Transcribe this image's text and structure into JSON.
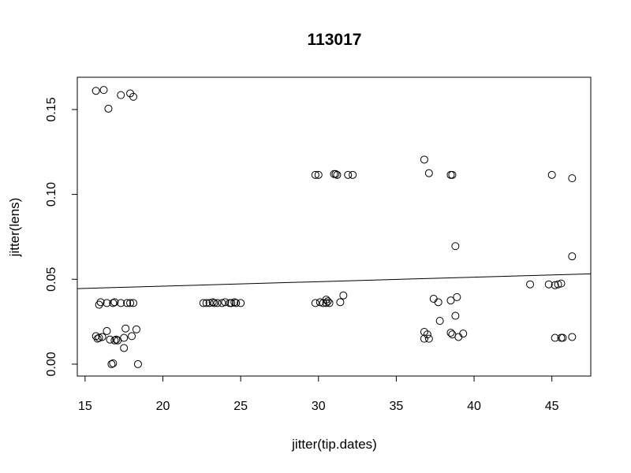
{
  "chart_data": {
    "type": "scatter",
    "title": "113017",
    "xlabel": "jitter(tip.dates)",
    "ylabel": "jitter(lens)",
    "xlim": [
      14.5,
      47.5
    ],
    "ylim": [
      -0.007,
      0.169
    ],
    "xticks": [
      15,
      20,
      25,
      30,
      35,
      40,
      45
    ],
    "yticks": [
      0.0,
      0.05,
      0.1,
      0.15
    ],
    "ytick_labels": [
      "0.00",
      "0.05",
      "0.10",
      "0.15"
    ],
    "grid": false,
    "marker": "open-circle",
    "series": [
      {
        "points": [
          [
            15.7,
            0.161
          ],
          [
            16.2,
            0.1615
          ],
          [
            16.5,
            0.1505
          ],
          [
            17.3,
            0.1585
          ],
          [
            17.9,
            0.1595
          ],
          [
            18.1,
            0.1575
          ],
          [
            15.9,
            0.035
          ],
          [
            16.0,
            0.0365
          ],
          [
            16.4,
            0.036
          ],
          [
            16.8,
            0.036
          ],
          [
            16.9,
            0.0365
          ],
          [
            17.3,
            0.036
          ],
          [
            17.7,
            0.036
          ],
          [
            17.9,
            0.036
          ],
          [
            18.1,
            0.036
          ],
          [
            15.7,
            0.0165
          ],
          [
            15.8,
            0.015
          ],
          [
            15.9,
            0.0155
          ],
          [
            16.1,
            0.016
          ],
          [
            16.4,
            0.0195
          ],
          [
            16.6,
            0.0145
          ],
          [
            16.9,
            0.014
          ],
          [
            17.0,
            0.0145
          ],
          [
            17.1,
            0.014
          ],
          [
            17.5,
            0.0155
          ],
          [
            17.6,
            0.021
          ],
          [
            18.0,
            0.0165
          ],
          [
            18.3,
            0.0205
          ],
          [
            17.5,
            0.0095
          ],
          [
            16.7,
            0.0
          ],
          [
            16.8,
            0.0005
          ],
          [
            18.4,
            0.0
          ],
          [
            22.6,
            0.036
          ],
          [
            22.8,
            0.036
          ],
          [
            23.0,
            0.036
          ],
          [
            23.2,
            0.0365
          ],
          [
            23.3,
            0.036
          ],
          [
            23.5,
            0.036
          ],
          [
            23.8,
            0.036
          ],
          [
            24.0,
            0.0365
          ],
          [
            24.3,
            0.036
          ],
          [
            24.4,
            0.036
          ],
          [
            24.6,
            0.0365
          ],
          [
            24.7,
            0.036
          ],
          [
            25.0,
            0.036
          ],
          [
            29.8,
            0.1115
          ],
          [
            30.0,
            0.1115
          ],
          [
            31.0,
            0.112
          ],
          [
            31.1,
            0.112
          ],
          [
            31.2,
            0.1115
          ],
          [
            31.9,
            0.1115
          ],
          [
            32.2,
            0.1115
          ],
          [
            29.8,
            0.036
          ],
          [
            30.1,
            0.0365
          ],
          [
            30.3,
            0.036
          ],
          [
            30.5,
            0.036
          ],
          [
            30.6,
            0.037
          ],
          [
            30.5,
            0.038
          ],
          [
            30.7,
            0.036
          ],
          [
            31.4,
            0.0365
          ],
          [
            31.6,
            0.0405
          ],
          [
            36.8,
            0.1205
          ],
          [
            37.1,
            0.1125
          ],
          [
            38.5,
            0.1115
          ],
          [
            38.6,
            0.1115
          ],
          [
            38.8,
            0.0695
          ],
          [
            37.4,
            0.0385
          ],
          [
            37.7,
            0.0365
          ],
          [
            38.5,
            0.0375
          ],
          [
            38.9,
            0.0395
          ],
          [
            38.8,
            0.0285
          ],
          [
            37.8,
            0.0255
          ],
          [
            36.8,
            0.019
          ],
          [
            37.0,
            0.0175
          ],
          [
            36.8,
            0.015
          ],
          [
            37.1,
            0.015
          ],
          [
            38.5,
            0.0185
          ],
          [
            38.6,
            0.0175
          ],
          [
            39.0,
            0.016
          ],
          [
            39.3,
            0.018
          ],
          [
            43.6,
            0.047
          ],
          [
            44.8,
            0.047
          ],
          [
            45.2,
            0.0465
          ],
          [
            45.4,
            0.047
          ],
          [
            45.6,
            0.0475
          ],
          [
            45.0,
            0.1115
          ],
          [
            46.3,
            0.1095
          ],
          [
            46.3,
            0.0635
          ],
          [
            45.2,
            0.0155
          ],
          [
            45.6,
            0.0155
          ],
          [
            45.7,
            0.0155
          ],
          [
            46.3,
            0.016
          ]
        ]
      }
    ],
    "regression_line": {
      "x": [
        14.5,
        47.5
      ],
      "y": [
        0.0445,
        0.0532
      ]
    }
  }
}
